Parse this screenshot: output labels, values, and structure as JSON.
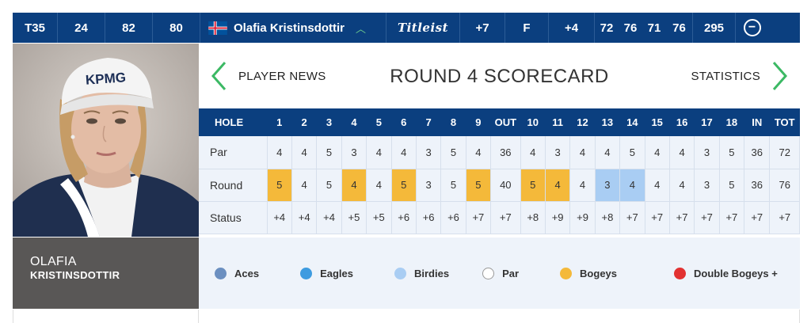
{
  "topbar": {
    "position": "T35",
    "r1": "24",
    "r2": "82",
    "r3": "80",
    "player_name": "Olafia Kristinsdottir",
    "brand": "Titleist",
    "to_par": "+7",
    "thru": "F",
    "today": "+4",
    "rounds": [
      "72",
      "76",
      "71",
      "76"
    ],
    "total": "295"
  },
  "player": {
    "first_name": "OLAFIA",
    "last_name": "KRISTINSDOTTIR",
    "cap_logo": "KPMG"
  },
  "nav": {
    "prev_label": "PLAYER NEWS",
    "title": "ROUND 4 SCORECARD",
    "next_label": "STATISTICS"
  },
  "scorecard": {
    "headers": [
      "HOLE",
      "1",
      "2",
      "3",
      "4",
      "5",
      "6",
      "7",
      "8",
      "9",
      "OUT",
      "10",
      "11",
      "12",
      "13",
      "14",
      "15",
      "16",
      "17",
      "18",
      "IN",
      "TOT"
    ],
    "rows": [
      {
        "label": "Par",
        "cells": [
          "4",
          "4",
          "5",
          "3",
          "4",
          "4",
          "3",
          "5",
          "4",
          "36",
          "4",
          "3",
          "4",
          "4",
          "5",
          "4",
          "4",
          "3",
          "5",
          "36",
          "72"
        ],
        "types": [
          "",
          "",
          "",
          "",
          "",
          "",
          "",
          "",
          "",
          "",
          "",
          "",
          "",
          "",
          "",
          "",
          "",
          "",
          "",
          "",
          ""
        ]
      },
      {
        "label": "Round",
        "cells": [
          "5",
          "4",
          "5",
          "4",
          "4",
          "5",
          "3",
          "5",
          "5",
          "40",
          "5",
          "4",
          "4",
          "3",
          "4",
          "4",
          "4",
          "3",
          "5",
          "36",
          "76"
        ],
        "types": [
          "bogey",
          "",
          "",
          "bogey",
          "",
          "bogey",
          "",
          "",
          "bogey",
          "",
          "bogey",
          "bogey",
          "",
          "birdie",
          "birdie",
          "",
          "",
          "",
          "",
          "",
          ""
        ]
      },
      {
        "label": "Status",
        "cells": [
          "+4",
          "+4",
          "+4",
          "+5",
          "+5",
          "+6",
          "+6",
          "+6",
          "+7",
          "+7",
          "+8",
          "+9",
          "+9",
          "+8",
          "+7",
          "+7",
          "+7",
          "+7",
          "+7",
          "+7",
          "+7"
        ],
        "types": [
          "",
          "",
          "",
          "",
          "",
          "",
          "",
          "",
          "",
          "",
          "",
          "",
          "",
          "",
          "",
          "",
          "",
          "",
          "",
          "",
          ""
        ]
      }
    ]
  },
  "legend": [
    {
      "label": "Aces",
      "color": "#6b8fc0"
    },
    {
      "label": "Eagles",
      "color": "#3d9be0"
    },
    {
      "label": "Birdies",
      "color": "#a9cdf3"
    },
    {
      "label": "Par",
      "color": "#ffffff"
    },
    {
      "label": "Bogeys",
      "color": "#f4b93a"
    },
    {
      "label": "Double Bogeys +",
      "color": "#e23131"
    }
  ],
  "colors": {
    "navy": "#0b3f7f",
    "green_arrow": "#3cb964",
    "namebox": "#595756"
  }
}
